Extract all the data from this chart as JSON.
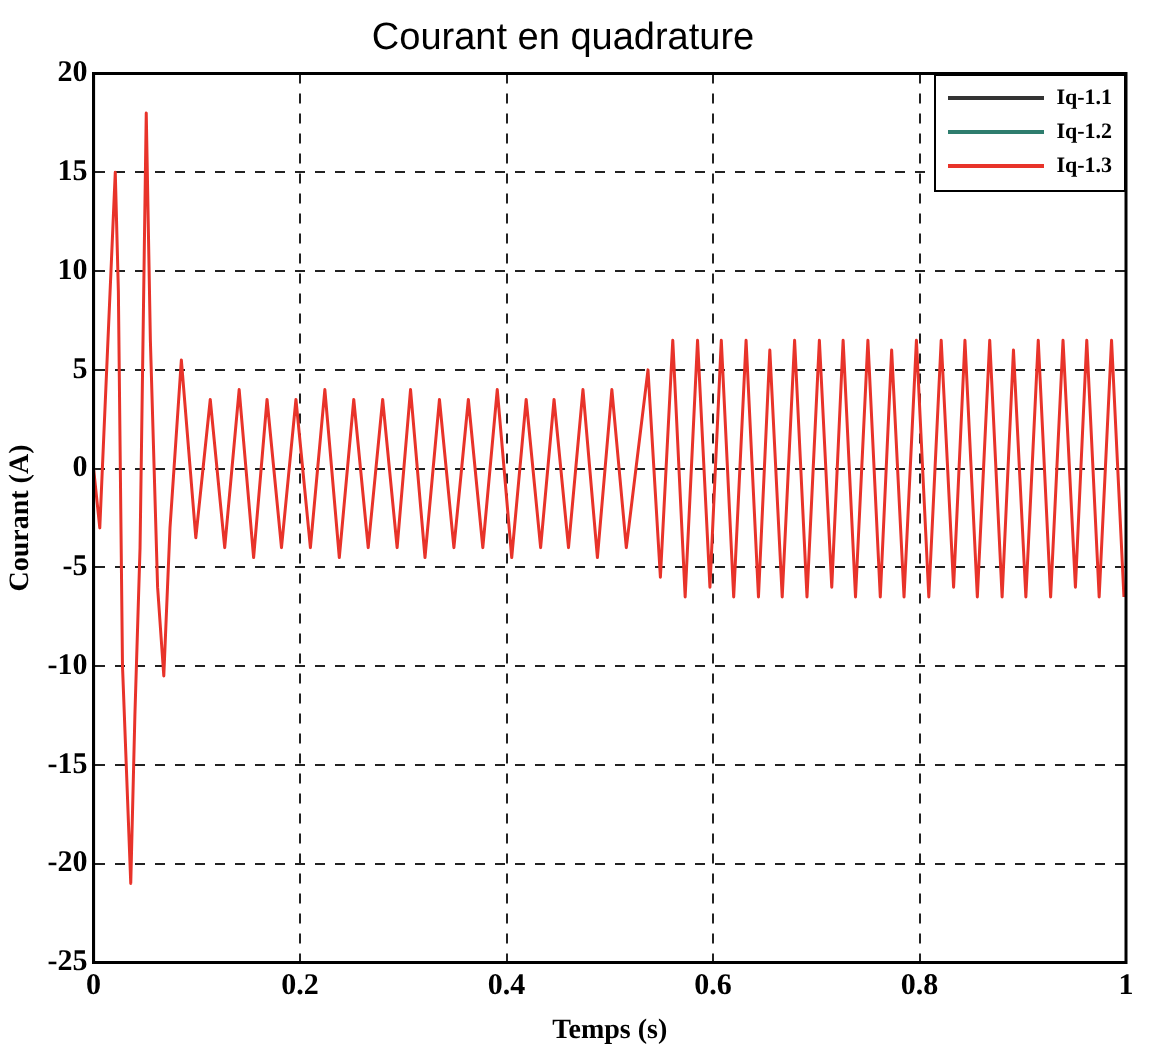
{
  "chart_data": {
    "type": "line",
    "title": "Courant en quadrature",
    "xlabel": "Temps (s)",
    "ylabel": "Courant (A)",
    "xlim": [
      0,
      1
    ],
    "xticks": [
      0,
      0.2,
      0.4,
      0.6,
      0.8,
      1
    ],
    "ylim": [
      -25,
      20
    ],
    "yticks": [
      -25,
      -20,
      -15,
      -10,
      -5,
      0,
      5,
      10,
      15,
      20
    ],
    "grid": true,
    "legend": "top right",
    "marker": "none",
    "line_style": "solid",
    "series": [
      {
        "name": "Iq-1.1",
        "color": "#333333"
      },
      {
        "name": "Iq-1.2",
        "color": "#2e7d6e"
      },
      {
        "name": "Iq-1.3",
        "color": "#e8332a",
        "x": [
          0,
          0.006,
          0.021,
          0.024,
          0.028,
          0.036,
          0.04,
          0.045,
          0.051,
          0.055,
          0.062,
          0.068,
          0.074,
          0.085,
          0.099,
          0.113,
          0.127,
          0.141,
          0.155,
          0.168,
          0.182,
          0.196,
          0.21,
          0.224,
          0.238,
          0.252,
          0.266,
          0.28,
          0.294,
          0.307,
          0.321,
          0.335,
          0.349,
          0.363,
          0.377,
          0.391,
          0.405,
          0.419,
          0.433,
          0.446,
          0.46,
          0.474,
          0.488,
          0.502,
          0.516,
          0.537,
          0.549,
          0.561,
          0.573,
          0.585,
          0.597,
          0.608,
          0.62,
          0.632,
          0.644,
          0.655,
          0.667,
          0.679,
          0.691,
          0.703,
          0.715,
          0.726,
          0.738,
          0.75,
          0.762,
          0.773,
          0.785,
          0.797,
          0.809,
          0.821,
          0.833,
          0.844,
          0.856,
          0.868,
          0.88,
          0.891,
          0.903,
          0.915,
          0.927,
          0.939,
          0.951,
          0.962,
          0.974,
          0.986,
          0.998
        ],
        "values": [
          0,
          -3,
          15,
          9,
          -10,
          -21,
          -12.5,
          -4,
          18,
          6.5,
          -6,
          -10.5,
          -3,
          5.5,
          -3.5,
          3.5,
          -4,
          4,
          -4.5,
          3.5,
          -4,
          3.5,
          -4,
          4,
          -4.5,
          3.5,
          -4,
          3.5,
          -4,
          4,
          -4.5,
          3.5,
          -4,
          3.5,
          -4,
          4,
          -4.5,
          3.5,
          -4,
          3.5,
          -4,
          4,
          -4.5,
          4,
          -4,
          5,
          -5.5,
          6.5,
          -6.5,
          6.5,
          -6,
          6.5,
          -6.5,
          6.5,
          -6.5,
          6,
          -6.5,
          6.5,
          -6.5,
          6.5,
          -6,
          6.5,
          -6.5,
          6.5,
          -6.5,
          6,
          -6.5,
          6.5,
          -6.5,
          6.5,
          -6,
          6.5,
          -6.5,
          6.5,
          -6.5,
          6,
          -6.5,
          6.5,
          -6.5,
          6.5,
          -6,
          6.5,
          -6.5,
          6.5,
          -6.5
        ]
      }
    ]
  }
}
